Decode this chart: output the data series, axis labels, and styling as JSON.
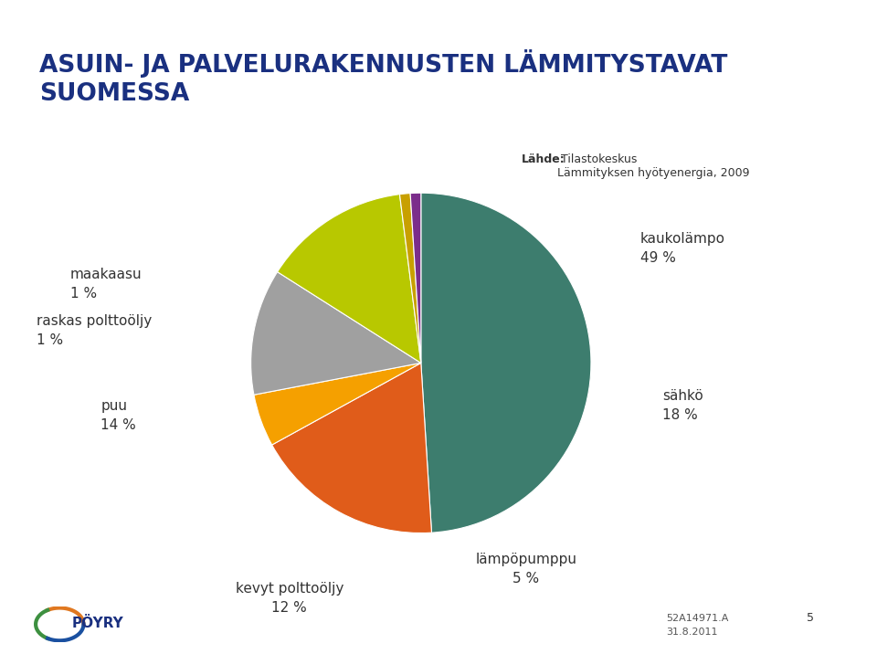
{
  "title_line1": "ASUIN- JA PALVELURAKENNUSTEN LÄMMITYSTAVAT",
  "title_line2": "SUOMESSA",
  "source_bold": "Lähde:",
  "source_rest": " Tilastokeskus\nLämmityksen hyötyenergia, 2009",
  "slices": [
    {
      "label": "kaukolämpo\n49 %",
      "value": 49,
      "color": "#3d7d6e"
    },
    {
      "label": "sähkö\n18 %",
      "value": 18,
      "color": "#e05c1a"
    },
    {
      "label": "lämpöpumppu\n5 %",
      "value": 5,
      "color": "#f5a000"
    },
    {
      "label": "kevyt polttoöljy\n12 %",
      "value": 12,
      "color": "#a0a0a0"
    },
    {
      "label": "puu\n14 %",
      "value": 14,
      "color": "#b8c800"
    },
    {
      "label": "raskas polttoöljy\n1 %",
      "value": 1,
      "color": "#c8a000"
    },
    {
      "label": "maakaasu\n1 %",
      "value": 1,
      "color": "#7b2d8b"
    }
  ],
  "bg_color": "#ffffff",
  "title_color": "#1a3080",
  "text_color": "#333333",
  "label_fontsize": 11,
  "title_fontsize": 19,
  "top_bar_color": "#d4a820",
  "bottom_line_color": "#cccccc"
}
